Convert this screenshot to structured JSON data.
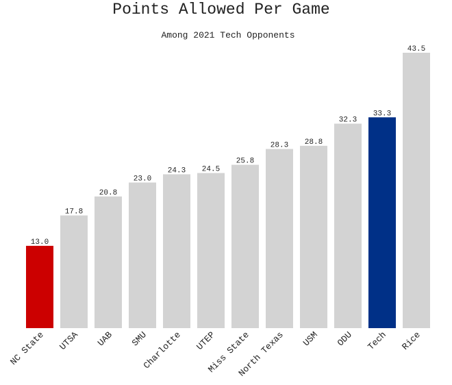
{
  "chart_data": {
    "type": "bar",
    "title": "Points Allowed Per Game",
    "subtitle": "Among 2021 Tech Opponents",
    "categories": [
      "NC State",
      "UTSA",
      "UAB",
      "SMU",
      "Charlotte",
      "UTEP",
      "Miss State",
      "North Texas",
      "USM",
      "ODU",
      "Tech",
      "Rice"
    ],
    "values": [
      13,
      17.8,
      20.8,
      23,
      24.3,
      24.5,
      25.8,
      28.3,
      28.8,
      32.3,
      33.3,
      43.5
    ],
    "value_labels": [
      "13.0",
      "17.8",
      "20.8",
      "23.0",
      "24.3",
      "24.5",
      "25.8",
      "28.3",
      "28.8",
      "32.3",
      "33.3",
      "43.5"
    ],
    "colors": [
      "#cc0000",
      "#d3d3d3",
      "#d3d3d3",
      "#d3d3d3",
      "#d3d3d3",
      "#d3d3d3",
      "#d3d3d3",
      "#d3d3d3",
      "#d3d3d3",
      "#d3d3d3",
      "#003087",
      "#d3d3d3"
    ]
  }
}
